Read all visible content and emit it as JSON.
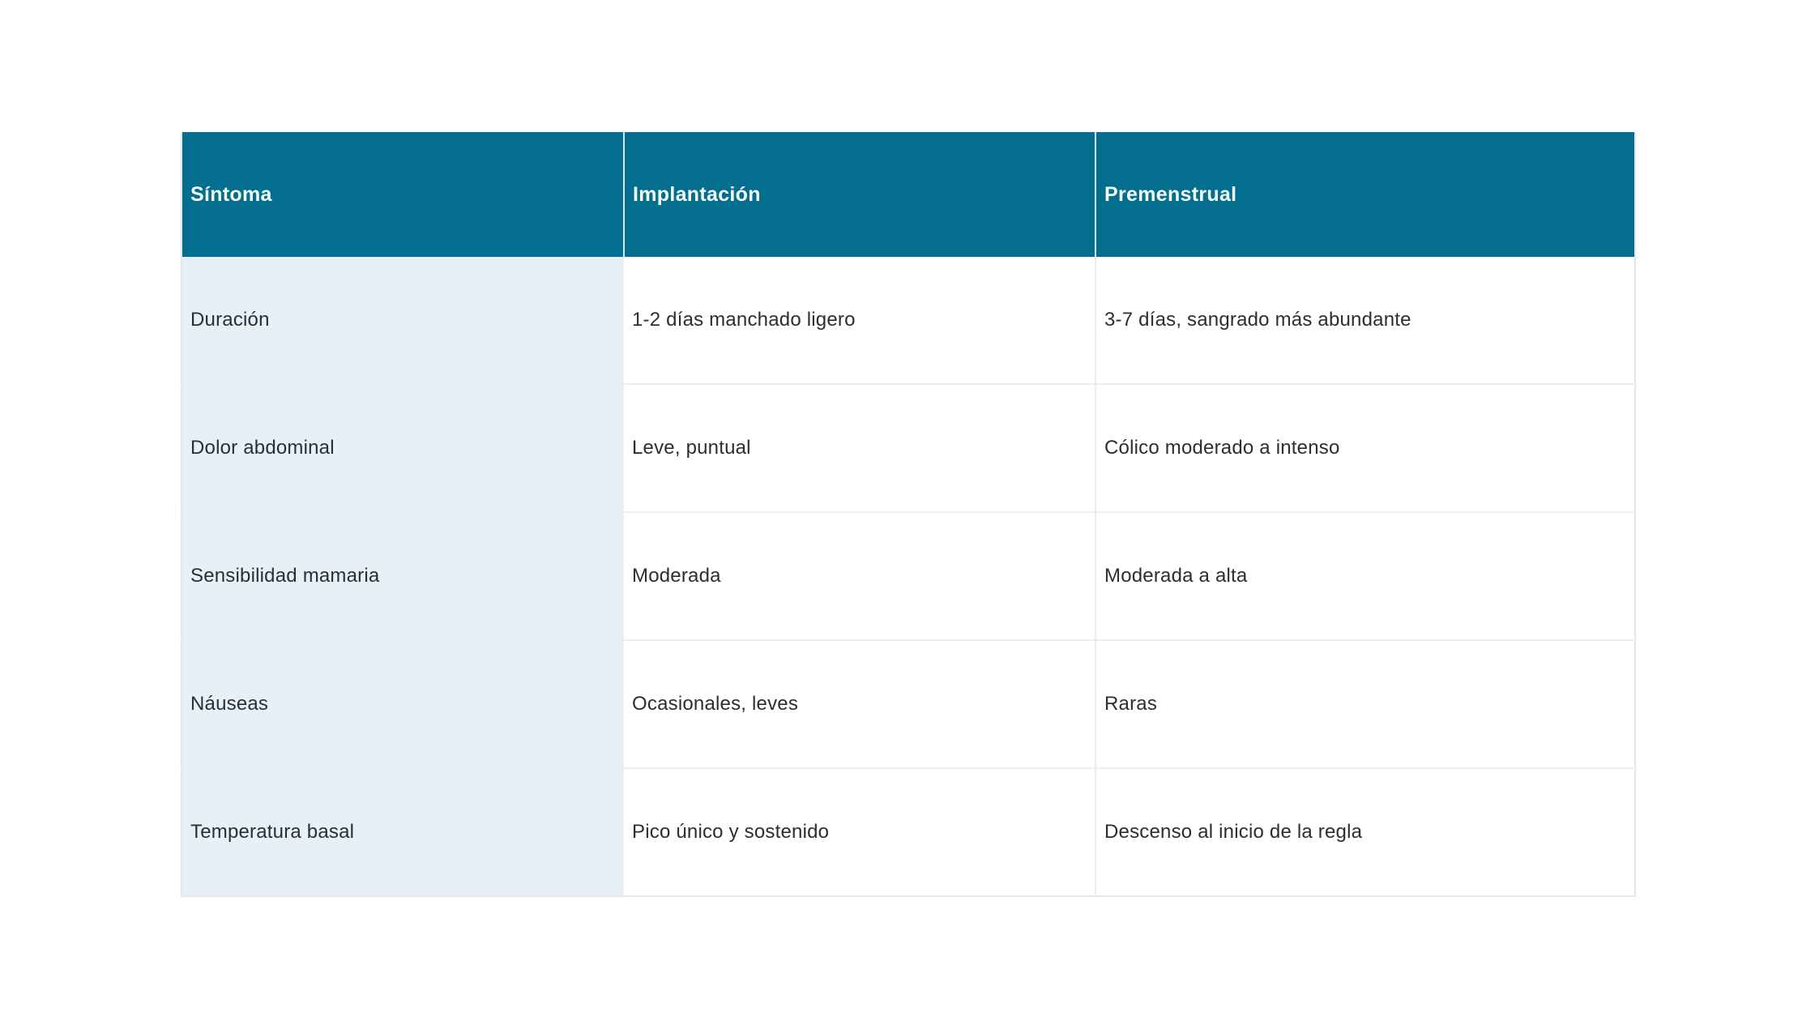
{
  "table": {
    "columns": [
      {
        "label": "Síntoma"
      },
      {
        "label": "Implantación"
      },
      {
        "label": "Premenstrual"
      }
    ],
    "rows": [
      {
        "symptom": "Duración",
        "implantation": "1-2 días manchado ligero",
        "premenstrual": "3-7 días, sangrado más abundante"
      },
      {
        "symptom": "Dolor abdominal",
        "implantation": "Leve, puntual",
        "premenstrual": "Cólico moderado a intenso"
      },
      {
        "symptom": "Sensibilidad mamaria",
        "implantation": "Moderada",
        "premenstrual": "Moderada a alta"
      },
      {
        "symptom": "Náuseas",
        "implantation": "Ocasionales, leves",
        "premenstrual": "Raras"
      },
      {
        "symptom": "Temperatura basal",
        "implantation": "Pico único y sostenido",
        "premenstrual": "Descenso al inicio de la regla"
      }
    ]
  },
  "colors": {
    "header_bg": "#046e8e",
    "header_text": "#f6fcfe",
    "symptom_column_bg": "#e5f0f9",
    "body_text": "#2e2e2e",
    "row_divider": "#ededed",
    "outer_border": "#e7e7e7",
    "page_bg": "#ffffff"
  }
}
